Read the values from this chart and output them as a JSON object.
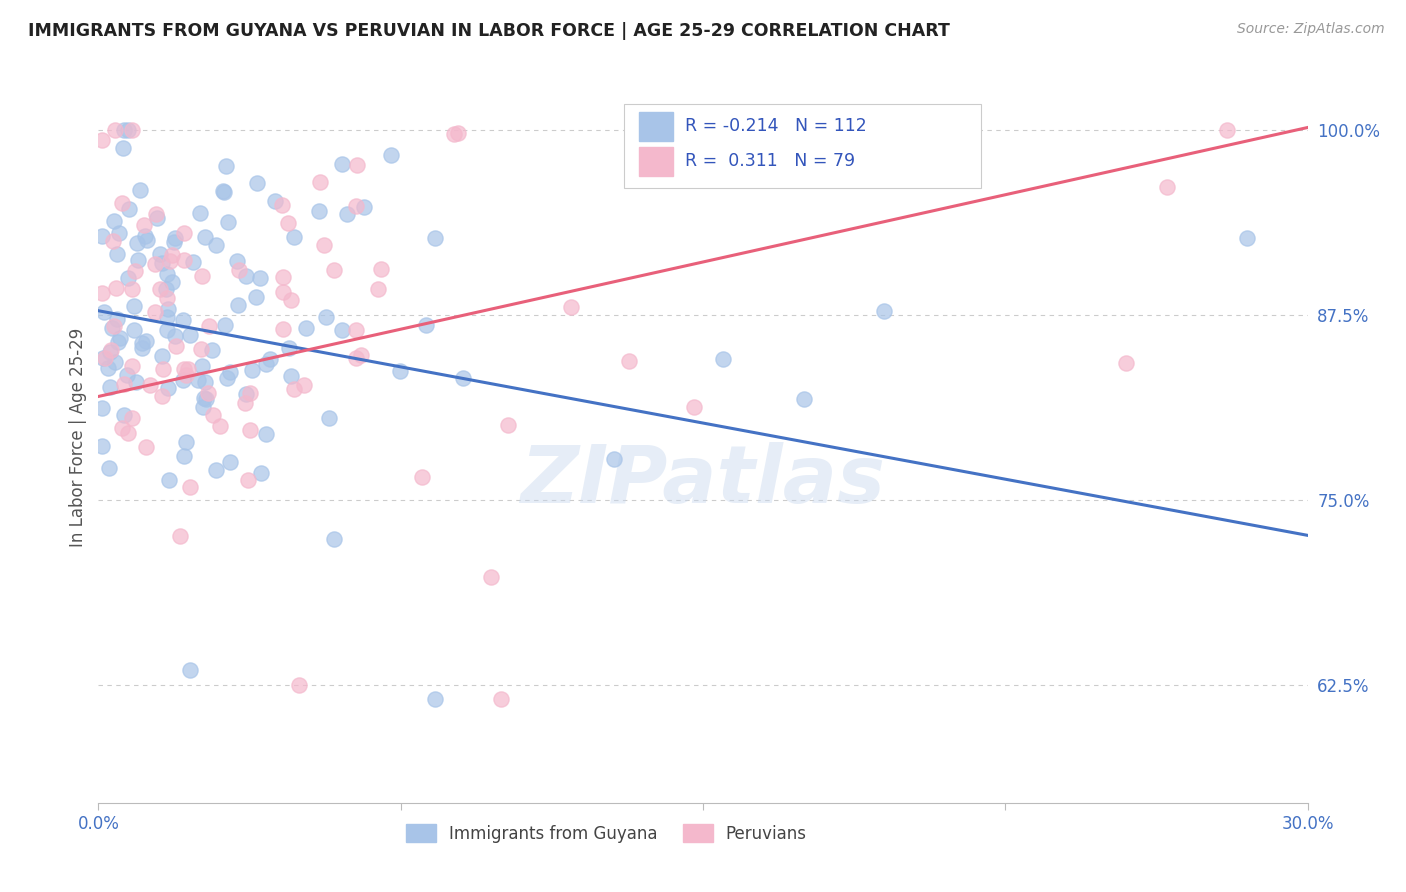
{
  "title": "IMMIGRANTS FROM GUYANA VS PERUVIAN IN LABOR FORCE | AGE 25-29 CORRELATION CHART",
  "source": "Source: ZipAtlas.com",
  "ylabel": "In Labor Force | Age 25-29",
  "ytick_labels": [
    "62.5%",
    "75.0%",
    "87.5%",
    "100.0%"
  ],
  "ytick_values": [
    0.625,
    0.75,
    0.875,
    1.0
  ],
  "xmin": 0.0,
  "xmax": 0.3,
  "ymin": 0.545,
  "ymax": 1.04,
  "watermark": "ZIPatlas",
  "legend_label1": "Immigrants from Guyana",
  "legend_label2": "Peruvians",
  "guyana_color": "#a8c4e8",
  "peru_color": "#f4b8cc",
  "guyana_line_color": "#4472c4",
  "peru_line_color": "#e8607a",
  "title_color": "#222222",
  "source_color": "#999999",
  "ytick_color": "#4472c4",
  "xtick_color": "#4472c4",
  "grid_color": "#cccccc",
  "background_color": "#ffffff",
  "guyana_R": -0.214,
  "guyana_N": 112,
  "peru_R": 0.311,
  "peru_N": 79,
  "guyana_line_y0": 0.878,
  "guyana_line_y1": 0.726,
  "peru_line_y0": 0.82,
  "peru_line_y1": 1.002
}
